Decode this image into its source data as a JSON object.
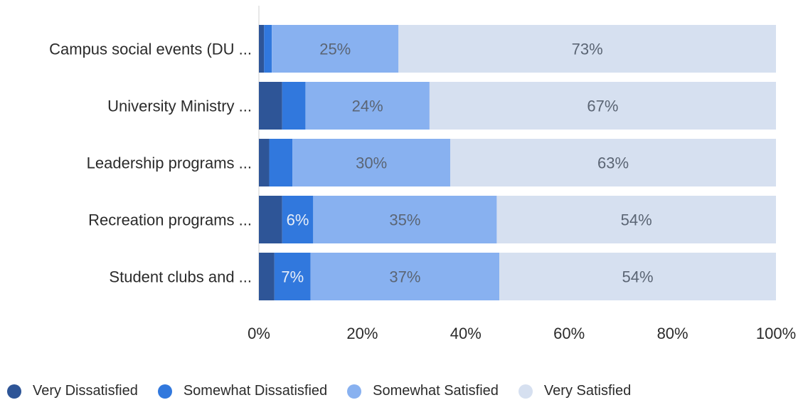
{
  "chart_data": {
    "type": "bar",
    "orientation": "horizontal",
    "stacked": true,
    "categories": [
      "Campus social events (DU ...",
      "University Ministry ...",
      "Leadership programs ...",
      "Recreation programs ...",
      "Student clubs and ..."
    ],
    "series": [
      {
        "name": "Very Dissatisfied",
        "color": "#2e5597",
        "values": [
          1,
          4.5,
          2,
          4.5,
          3
        ],
        "labels": [
          "",
          "",
          "",
          "",
          ""
        ]
      },
      {
        "name": "Somewhat Dissatisfied",
        "color": "#3178dd",
        "values": [
          1.5,
          4.5,
          4.5,
          6,
          7
        ],
        "labels": [
          "",
          "",
          "",
          "6%",
          "7%"
        ]
      },
      {
        "name": "Somewhat Satisfied",
        "color": "#88b1f0",
        "values": [
          24.5,
          24,
          30.5,
          35.5,
          36.5
        ],
        "labels": [
          "25%",
          "24%",
          "30%",
          "35%",
          "37%"
        ]
      },
      {
        "name": "Very Satisfied",
        "color": "#d6e0f0",
        "values": [
          73,
          67,
          63,
          54,
          53.5
        ],
        "labels": [
          "73%",
          "67%",
          "63%",
          "54%",
          "54%"
        ]
      }
    ],
    "xlim": [
      0,
      100
    ],
    "xticks": [
      "0%",
      "20%",
      "40%",
      "60%",
      "80%",
      "100%"
    ],
    "xtick_values": [
      0,
      20,
      40,
      60,
      80,
      100
    ],
    "label_colors": {
      "dark_bg": "#e8eef8",
      "light_bg": "#5b6574"
    },
    "grid": false,
    "legend_position": "bottom-left"
  }
}
